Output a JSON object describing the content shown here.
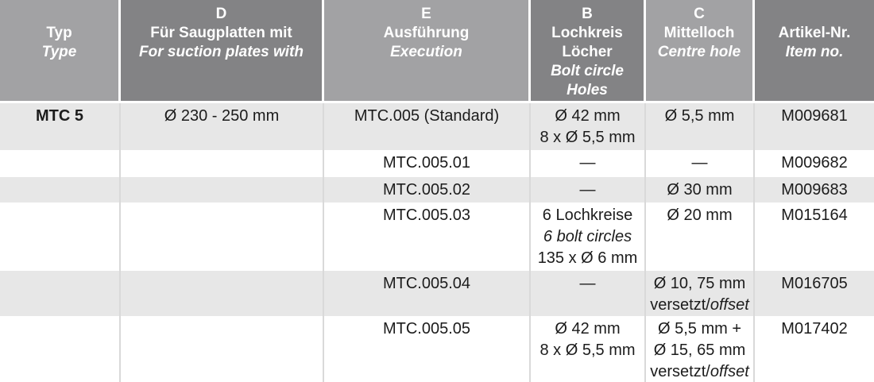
{
  "colors": {
    "header_light_gray": "#a2a2a4",
    "header_dark_gray": "#838385",
    "row_stripe_gray": "#e7e7e7",
    "row_stripe_white": "#ffffff",
    "header_text": "#ffffff",
    "body_text": "#1c1c1c",
    "body_divider": "#d9d9d9"
  },
  "header": {
    "typ": {
      "de": "Typ",
      "en": "Type"
    },
    "suction": {
      "letter": "D",
      "de": "Für Saugplatten mit",
      "en": "For suction plates with"
    },
    "execution": {
      "letter": "E",
      "de": "Ausführung",
      "en": "Execution"
    },
    "bolt_circle": {
      "letter": "B",
      "de_line1": "Lochkreis",
      "de_line2": "Löcher",
      "en_line1": "Bolt circle",
      "en_line2": "Holes"
    },
    "centre_hole": {
      "letter": "C",
      "de": "Mittelloch",
      "en": "Centre hole"
    },
    "item_no": {
      "de": "Artikel-Nr.",
      "en": "Item no."
    }
  },
  "rows": [
    {
      "typ": "MTC 5",
      "suction": "Ø 230 - 250 mm",
      "execution": "MTC.005 (Standard)",
      "bolt_line1": "Ø 42 mm",
      "bolt_line2": "8 x Ø 5,5 mm",
      "centre_line1": "Ø 5,5 mm",
      "item": "M009681"
    },
    {
      "execution": "MTC.005.01",
      "bolt_line1": "—",
      "centre_line1": "—",
      "item": "M009682"
    },
    {
      "execution": "MTC.005.02",
      "bolt_line1": "—",
      "centre_line1": "Ø 30 mm",
      "item": "M009683"
    },
    {
      "execution": "MTC.005.03",
      "bolt_line1": "6 Lochkreise",
      "bolt_line2_italic": "6 bolt circles",
      "bolt_line3": "135 x Ø 6 mm",
      "centre_line1": "Ø 20 mm",
      "item": "M015164"
    },
    {
      "execution": "MTC.005.04",
      "bolt_line1": "—",
      "centre_line1": "Ø 10, 75 mm",
      "centre_line2_normal": "versetzt/",
      "centre_line2_italic": "offset",
      "item": "M016705"
    },
    {
      "execution": "MTC.005.05",
      "bolt_line1": "Ø 42 mm",
      "bolt_line2": "8 x Ø 5,5 mm",
      "centre_line1": "Ø 5,5 mm +",
      "centre_line2": "Ø 15, 65 mm",
      "centre_line3_normal": "versetzt/",
      "centre_line3_italic": "offset",
      "item": "M017402"
    }
  ]
}
